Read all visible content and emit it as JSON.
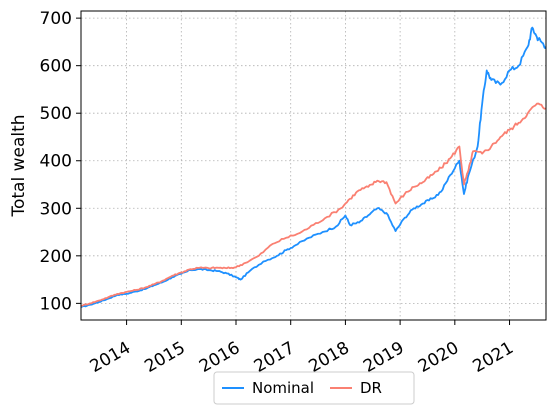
{
  "chart_data": {
    "type": "line",
    "title": "",
    "xlabel": "",
    "ylabel": "Total wealth",
    "xlim": [
      "2013-03-01",
      "2021-09-01"
    ],
    "ylim": [
      65,
      715
    ],
    "grid": true,
    "legend": {
      "placement": "bottom-center",
      "columns": 2
    },
    "x_ticks": [
      "2014",
      "2015",
      "2016",
      "2017",
      "2018",
      "2019",
      "2020",
      "2021"
    ],
    "y_ticks": [
      100,
      200,
      300,
      400,
      500,
      600,
      700
    ],
    "series": [
      {
        "name": "Nominal",
        "color": "#1e90ff",
        "points": [
          [
            "2013-03",
            92
          ],
          [
            "2013-05",
            97
          ],
          [
            "2013-07",
            103
          ],
          [
            "2013-09",
            110
          ],
          [
            "2013-11",
            118
          ],
          [
            "2014-01",
            120
          ],
          [
            "2014-03",
            125
          ],
          [
            "2014-05",
            130
          ],
          [
            "2014-07",
            138
          ],
          [
            "2014-09",
            145
          ],
          [
            "2014-11",
            155
          ],
          [
            "2015-01",
            162
          ],
          [
            "2015-03",
            170
          ],
          [
            "2015-05",
            172
          ],
          [
            "2015-07",
            170
          ],
          [
            "2015-09",
            168
          ],
          [
            "2015-11",
            163
          ],
          [
            "2016-01",
            155
          ],
          [
            "2016-02",
            150
          ],
          [
            "2016-04",
            168
          ],
          [
            "2016-07",
            188
          ],
          [
            "2016-10",
            200
          ],
          [
            "2016-12",
            212
          ],
          [
            "2017-02",
            222
          ],
          [
            "2017-05",
            238
          ],
          [
            "2017-08",
            250
          ],
          [
            "2017-11",
            262
          ],
          [
            "2018-01",
            285
          ],
          [
            "2018-02",
            265
          ],
          [
            "2018-04",
            270
          ],
          [
            "2018-06",
            285
          ],
          [
            "2018-08",
            300
          ],
          [
            "2018-10",
            290
          ],
          [
            "2018-12",
            252
          ],
          [
            "2019-02",
            280
          ],
          [
            "2019-04",
            300
          ],
          [
            "2019-06",
            310
          ],
          [
            "2019-08",
            320
          ],
          [
            "2019-10",
            335
          ],
          [
            "2019-12",
            370
          ],
          [
            "2020-02",
            400
          ],
          [
            "2020-03",
            330
          ],
          [
            "2020-04",
            370
          ],
          [
            "2020-06",
            430
          ],
          [
            "2020-07",
            520
          ],
          [
            "2020-08",
            590
          ],
          [
            "2020-09",
            570
          ],
          [
            "2020-11",
            560
          ],
          [
            "2021-01",
            590
          ],
          [
            "2021-03",
            600
          ],
          [
            "2021-05",
            640
          ],
          [
            "2021-06",
            680
          ],
          [
            "2021-07",
            660
          ],
          [
            "2021-08",
            650
          ],
          [
            "2021-09",
            640
          ]
        ]
      },
      {
        "name": "DR",
        "color": "#fa8072",
        "points": [
          [
            "2013-03",
            95
          ],
          [
            "2013-05",
            100
          ],
          [
            "2013-07",
            106
          ],
          [
            "2013-09",
            113
          ],
          [
            "2013-11",
            120
          ],
          [
            "2014-01",
            124
          ],
          [
            "2014-03",
            128
          ],
          [
            "2014-05",
            133
          ],
          [
            "2014-07",
            140
          ],
          [
            "2014-09",
            148
          ],
          [
            "2014-11",
            158
          ],
          [
            "2015-01",
            165
          ],
          [
            "2015-03",
            172
          ],
          [
            "2015-05",
            175
          ],
          [
            "2015-07",
            174
          ],
          [
            "2015-09",
            175
          ],
          [
            "2015-11",
            174
          ],
          [
            "2016-01",
            176
          ],
          [
            "2016-03",
            185
          ],
          [
            "2016-06",
            200
          ],
          [
            "2016-09",
            225
          ],
          [
            "2016-12",
            238
          ],
          [
            "2017-03",
            248
          ],
          [
            "2017-06",
            265
          ],
          [
            "2017-09",
            282
          ],
          [
            "2017-12",
            300
          ],
          [
            "2018-02",
            320
          ],
          [
            "2018-04",
            338
          ],
          [
            "2018-06",
            345
          ],
          [
            "2018-08",
            358
          ],
          [
            "2018-10",
            355
          ],
          [
            "2018-12",
            310
          ],
          [
            "2019-02",
            330
          ],
          [
            "2019-04",
            345
          ],
          [
            "2019-06",
            355
          ],
          [
            "2019-08",
            370
          ],
          [
            "2019-10",
            385
          ],
          [
            "2019-12",
            405
          ],
          [
            "2020-02",
            430
          ],
          [
            "2020-03",
            350
          ],
          [
            "2020-04",
            380
          ],
          [
            "2020-05",
            420
          ],
          [
            "2020-07",
            415
          ],
          [
            "2020-09",
            430
          ],
          [
            "2020-11",
            450
          ],
          [
            "2021-01",
            465
          ],
          [
            "2021-03",
            480
          ],
          [
            "2021-05",
            500
          ],
          [
            "2021-07",
            520
          ],
          [
            "2021-09",
            510
          ]
        ]
      }
    ]
  }
}
